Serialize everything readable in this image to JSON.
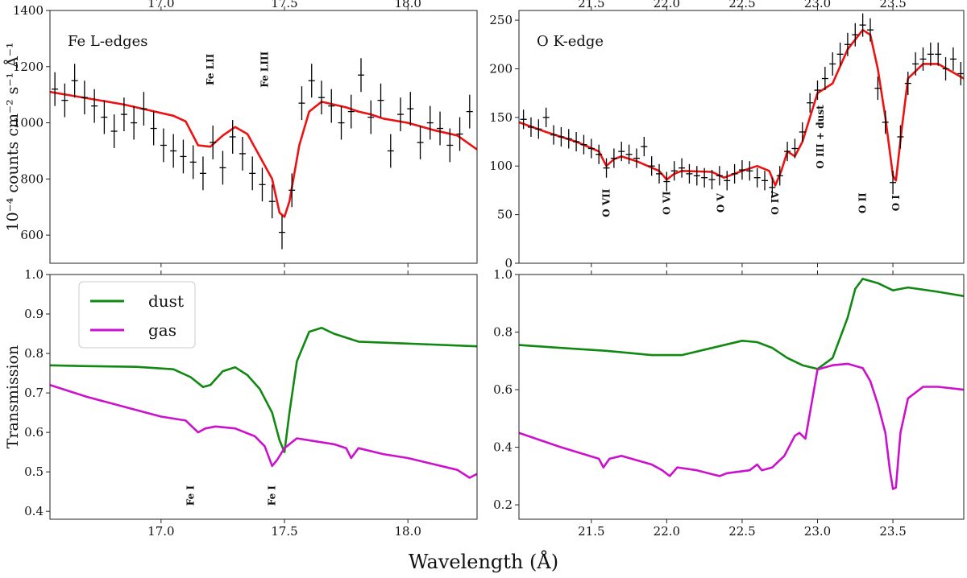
{
  "chart_data": {
    "type": "line",
    "x_axis_label": "Wavelength (Å)",
    "panels": [
      {
        "id": "fe_top",
        "title": "Fe L-edges",
        "xlim": [
          16.55,
          18.28
        ],
        "ylim": [
          500,
          1400
        ],
        "xticks": [
          17.0,
          17.5,
          18.0
        ],
        "xtick_labels": [
          "17.0",
          "17.5",
          "18.0"
        ],
        "yticks": [
          600,
          800,
          1000,
          1200,
          1400
        ],
        "ytick_labels": [
          "600",
          "800",
          "1000",
          "1200",
          "1400"
        ],
        "ylabel": "10⁻⁴ counts cm⁻² s⁻¹ Å⁻¹",
        "annotations": [
          {
            "text": "Fe LII",
            "x": 17.2,
            "y": 1190
          },
          {
            "text": "Fe LIII",
            "x": 17.42,
            "y": 1190
          }
        ],
        "series": [
          {
            "name": "model",
            "color": "#ee1111",
            "x": [
              16.55,
              16.65,
              16.75,
              16.85,
              16.95,
              17.05,
              17.1,
              17.15,
              17.2,
              17.25,
              17.3,
              17.35,
              17.4,
              17.45,
              17.48,
              17.5,
              17.52,
              17.56,
              17.6,
              17.65,
              17.7,
              17.75,
              17.8,
              17.85,
              17.9,
              18.0,
              18.1,
              18.2,
              18.28
            ],
            "y": [
              1110,
              1095,
              1080,
              1065,
              1045,
              1025,
              1005,
              920,
              915,
              955,
              985,
              960,
              880,
              800,
              680,
              665,
              720,
              920,
              1040,
              1075,
              1065,
              1055,
              1040,
              1030,
              1015,
              1000,
              975,
              955,
              905
            ]
          },
          {
            "name": "data",
            "color": "#000000",
            "errorbars": true,
            "x": [
              16.57,
              16.61,
              16.65,
              16.69,
              16.73,
              16.77,
              16.81,
              16.85,
              16.89,
              16.93,
              16.97,
              17.01,
              17.05,
              17.09,
              17.13,
              17.17,
              17.21,
              17.25,
              17.29,
              17.33,
              17.37,
              17.41,
              17.45,
              17.49,
              17.53,
              17.57,
              17.61,
              17.65,
              17.69,
              17.73,
              17.77,
              17.81,
              17.85,
              17.89,
              17.93,
              17.97,
              18.01,
              18.05,
              18.09,
              18.13,
              18.17,
              18.21,
              18.25
            ],
            "y": [
              1120,
              1080,
              1150,
              1090,
              1060,
              1020,
              970,
              1030,
              1000,
              1050,
              980,
              920,
              900,
              880,
              860,
              820,
              930,
              840,
              950,
              890,
              820,
              780,
              720,
              610,
              760,
              1070,
              1150,
              1090,
              1060,
              1000,
              1040,
              1170,
              1020,
              1080,
              900,
              1030,
              1050,
              930,
              1000,
              980,
              920,
              960,
              1040
            ],
            "err": [
              60,
              60,
              60,
              60,
              60,
              60,
              60,
              60,
              60,
              60,
              60,
              60,
              60,
              60,
              60,
              60,
              60,
              60,
              60,
              60,
              60,
              60,
              60,
              60,
              60,
              60,
              60,
              60,
              60,
              60,
              60,
              60,
              60,
              60,
              60,
              60,
              60,
              60,
              60,
              60,
              60,
              60,
              60
            ]
          }
        ]
      },
      {
        "id": "o_top",
        "title": "O K-edge",
        "xlim": [
          21.02,
          23.97
        ],
        "ylim": [
          0,
          260
        ],
        "xticks": [
          21.5,
          22.0,
          22.5,
          23.0,
          23.5
        ],
        "xtick_labels": [
          "21.5",
          "22.0",
          "22.5",
          "23.0",
          "23.5"
        ],
        "yticks": [
          0,
          50,
          100,
          150,
          200,
          250
        ],
        "ytick_labels": [
          "0",
          "50",
          "100",
          "150",
          "200",
          "250"
        ],
        "annotations": [
          {
            "text": "O VII",
            "x": 21.6,
            "y": 62
          },
          {
            "text": "O VI",
            "x": 22.0,
            "y": 62
          },
          {
            "text": "O V",
            "x": 22.36,
            "y": 62
          },
          {
            "text": "O IV",
            "x": 22.72,
            "y": 62
          },
          {
            "text": "O III + dust",
            "x": 23.02,
            "y": 130
          },
          {
            "text": "O II",
            "x": 23.3,
            "y": 62
          },
          {
            "text": "O I",
            "x": 23.52,
            "y": 62
          }
        ],
        "series": [
          {
            "name": "model",
            "color": "#ee1111",
            "x": [
              21.02,
              21.2,
              21.4,
              21.55,
              21.6,
              21.65,
              21.7,
              21.8,
              21.95,
              22.0,
              22.05,
              22.1,
              22.3,
              22.38,
              22.5,
              22.6,
              22.68,
              22.72,
              22.76,
              22.8,
              22.85,
              22.9,
              22.95,
              23.0,
              23.1,
              23.2,
              23.3,
              23.35,
              23.4,
              23.45,
              23.5,
              23.52,
              23.56,
              23.6,
              23.7,
              23.8,
              23.97
            ],
            "y": [
              145,
              135,
              125,
              115,
              100,
              107,
              110,
              105,
              95,
              86,
              92,
              95,
              94,
              88,
              95,
              100,
              95,
              80,
              95,
              115,
              110,
              125,
              150,
              175,
              185,
              220,
              240,
              235,
              200,
              150,
              90,
              85,
              140,
              190,
              205,
              205,
              190
            ]
          },
          {
            "name": "data",
            "color": "#000000",
            "errorbars": true,
            "x": [
              21.05,
              21.1,
              21.15,
              21.2,
              21.25,
              21.3,
              21.35,
              21.4,
              21.45,
              21.5,
              21.55,
              21.6,
              21.65,
              21.7,
              21.75,
              21.8,
              21.85,
              21.9,
              21.95,
              22.0,
              22.05,
              22.1,
              22.15,
              22.2,
              22.25,
              22.3,
              22.35,
              22.4,
              22.45,
              22.5,
              22.55,
              22.6,
              22.65,
              22.7,
              22.75,
              22.8,
              22.85,
              22.9,
              22.95,
              23.0,
              23.05,
              23.1,
              23.15,
              23.2,
              23.25,
              23.3,
              23.35,
              23.4,
              23.45,
              23.5,
              23.55,
              23.6,
              23.65,
              23.7,
              23.75,
              23.8,
              23.85,
              23.9,
              23.95
            ],
            "y": [
              148,
              140,
              138,
              150,
              132,
              130,
              128,
              125,
              122,
              118,
              112,
              98,
              108,
              115,
              112,
              108,
              120,
              100,
              92,
              84,
              95,
              98,
              92,
              90,
              88,
              86,
              90,
              85,
              92,
              96,
              95,
              88,
              85,
              78,
              90,
              115,
              118,
              135,
              165,
              178,
              190,
              205,
              215,
              225,
              235,
              245,
              240,
              180,
              145,
              83,
              130,
              185,
              205,
              210,
              215,
              215,
              200,
              210,
              195
            ],
            "err": [
              10,
              10,
              10,
              10,
              10,
              10,
              10,
              10,
              10,
              10,
              10,
              10,
              10,
              10,
              10,
              10,
              10,
              10,
              10,
              10,
              10,
              10,
              10,
              10,
              10,
              10,
              10,
              10,
              10,
              10,
              10,
              10,
              10,
              10,
              10,
              10,
              10,
              10,
              10,
              10,
              12,
              12,
              12,
              12,
              12,
              12,
              12,
              12,
              12,
              12,
              12,
              12,
              12,
              12,
              12,
              12,
              12,
              12,
              12
            ]
          }
        ]
      },
      {
        "id": "fe_bottom",
        "xlim": [
          16.55,
          18.28
        ],
        "ylim": [
          0.38,
          1.0
        ],
        "xticks": [
          17.0,
          17.5,
          18.0
        ],
        "xtick_labels": [
          "17.0",
          "17.5",
          "18.0"
        ],
        "yticks": [
          0.4,
          0.5,
          0.6,
          0.7,
          0.8,
          0.9,
          1.0
        ],
        "ytick_labels": [
          "0.4",
          "0.5",
          "0.6",
          "0.7",
          "0.8",
          "0.9",
          "1.0"
        ],
        "ylabel": "Transmission",
        "legend": [
          {
            "label": "dust",
            "color": "#118811"
          },
          {
            "label": "gas",
            "color": "#cc11cc"
          }
        ],
        "annotations": [
          {
            "text": "Fe I",
            "x": 17.12,
            "y": 0.44
          },
          {
            "text": "Fe I",
            "x": 17.45,
            "y": 0.44
          }
        ],
        "series": [
          {
            "name": "dust",
            "color": "#118811",
            "x": [
              16.55,
              16.7,
              16.9,
              17.05,
              17.12,
              17.17,
              17.2,
              17.25,
              17.3,
              17.35,
              17.4,
              17.45,
              17.48,
              17.5,
              17.52,
              17.55,
              17.6,
              17.65,
              17.7,
              17.8,
              18.0,
              18.28
            ],
            "y": [
              0.77,
              0.768,
              0.766,
              0.76,
              0.74,
              0.715,
              0.72,
              0.755,
              0.765,
              0.745,
              0.71,
              0.65,
              0.58,
              0.55,
              0.65,
              0.78,
              0.855,
              0.865,
              0.85,
              0.83,
              0.825,
              0.818
            ]
          },
          {
            "name": "gas",
            "color": "#cc11cc",
            "x": [
              16.55,
              16.7,
              16.85,
              17.0,
              17.1,
              17.15,
              17.18,
              17.22,
              17.3,
              17.38,
              17.42,
              17.45,
              17.47,
              17.5,
              17.55,
              17.7,
              17.75,
              17.77,
              17.8,
              17.9,
              18.0,
              18.1,
              18.2,
              18.25,
              18.28
            ],
            "y": [
              0.72,
              0.69,
              0.665,
              0.64,
              0.63,
              0.6,
              0.61,
              0.615,
              0.61,
              0.59,
              0.565,
              0.515,
              0.53,
              0.56,
              0.585,
              0.57,
              0.56,
              0.535,
              0.56,
              0.545,
              0.535,
              0.52,
              0.505,
              0.485,
              0.495
            ]
          }
        ]
      },
      {
        "id": "o_bottom",
        "xlim": [
          21.02,
          23.97
        ],
        "ylim": [
          0.15,
          1.0
        ],
        "xticks": [
          21.5,
          22.0,
          22.5,
          23.0,
          23.5
        ],
        "xtick_labels": [
          "21.5",
          "22.0",
          "22.5",
          "23.0",
          "23.5"
        ],
        "yticks": [
          0.2,
          0.4,
          0.6,
          0.8,
          1.0
        ],
        "ytick_labels": [
          "0.2",
          "0.4",
          "0.6",
          "0.8",
          "1.0"
        ],
        "series": [
          {
            "name": "dust",
            "color": "#118811",
            "x": [
              21.02,
              21.3,
              21.6,
              21.9,
              22.1,
              22.3,
              22.5,
              22.6,
              22.7,
              22.8,
              22.9,
              23.0,
              23.1,
              23.2,
              23.25,
              23.3,
              23.4,
              23.5,
              23.55,
              23.6,
              23.8,
              23.97
            ],
            "y": [
              0.755,
              0.745,
              0.735,
              0.72,
              0.72,
              0.745,
              0.77,
              0.765,
              0.745,
              0.71,
              0.685,
              0.672,
              0.71,
              0.85,
              0.95,
              0.985,
              0.97,
              0.945,
              0.95,
              0.955,
              0.94,
              0.925
            ]
          },
          {
            "name": "gas",
            "color": "#cc11cc",
            "x": [
              21.02,
              21.3,
              21.55,
              21.58,
              21.62,
              21.7,
              21.9,
              21.97,
              22.02,
              22.07,
              22.2,
              22.35,
              22.4,
              22.55,
              22.6,
              22.63,
              22.7,
              22.78,
              22.85,
              22.88,
              22.92,
              22.97,
              23.0,
              23.1,
              23.2,
              23.3,
              23.35,
              23.4,
              23.45,
              23.48,
              23.5,
              23.52,
              23.55,
              23.6,
              23.7,
              23.8,
              23.97
            ],
            "y": [
              0.45,
              0.4,
              0.36,
              0.33,
              0.36,
              0.37,
              0.34,
              0.32,
              0.3,
              0.33,
              0.32,
              0.3,
              0.31,
              0.32,
              0.34,
              0.32,
              0.33,
              0.37,
              0.44,
              0.45,
              0.43,
              0.58,
              0.67,
              0.685,
              0.69,
              0.675,
              0.63,
              0.55,
              0.45,
              0.32,
              0.255,
              0.26,
              0.45,
              0.57,
              0.61,
              0.61,
              0.6
            ]
          }
        ]
      }
    ]
  }
}
